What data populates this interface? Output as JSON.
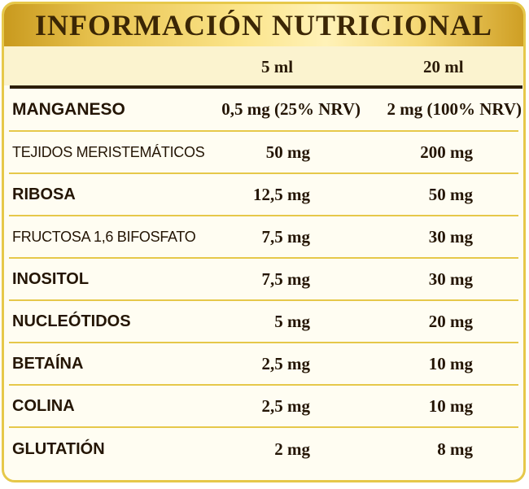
{
  "title": "INFORMACIÓN NUTRICIONAL",
  "columns": [
    "5 ml",
    "20 ml"
  ],
  "rows": [
    {
      "name": "MANGANESO",
      "v1": "0,5 mg (25% NRV)",
      "v2": "2 mg (100% NRV)"
    },
    {
      "name": "TEJIDOS MERISTEMÁTICOS",
      "v1": "50 mg",
      "v2": "200 mg"
    },
    {
      "name": "RIBOSA",
      "v1": "12,5 mg",
      "v2": "50 mg"
    },
    {
      "name": "FRUCTOSA 1,6 BIFOSFATO",
      "v1": "7,5 mg",
      "v2": "30 mg"
    },
    {
      "name": "INOSITOL",
      "v1": "7,5 mg",
      "v2": "30 mg"
    },
    {
      "name": "NUCLEÓTIDOS",
      "v1": "5 mg",
      "v2": "20 mg"
    },
    {
      "name": "BETAÍNA",
      "v1": "2,5 mg",
      "v2": "10 mg"
    },
    {
      "name": "COLINA",
      "v1": "2,5 mg",
      "v2": "10 mg"
    },
    {
      "name": "GLUTATIÓN",
      "v1": "2 mg",
      "v2": "8 mg"
    }
  ]
}
